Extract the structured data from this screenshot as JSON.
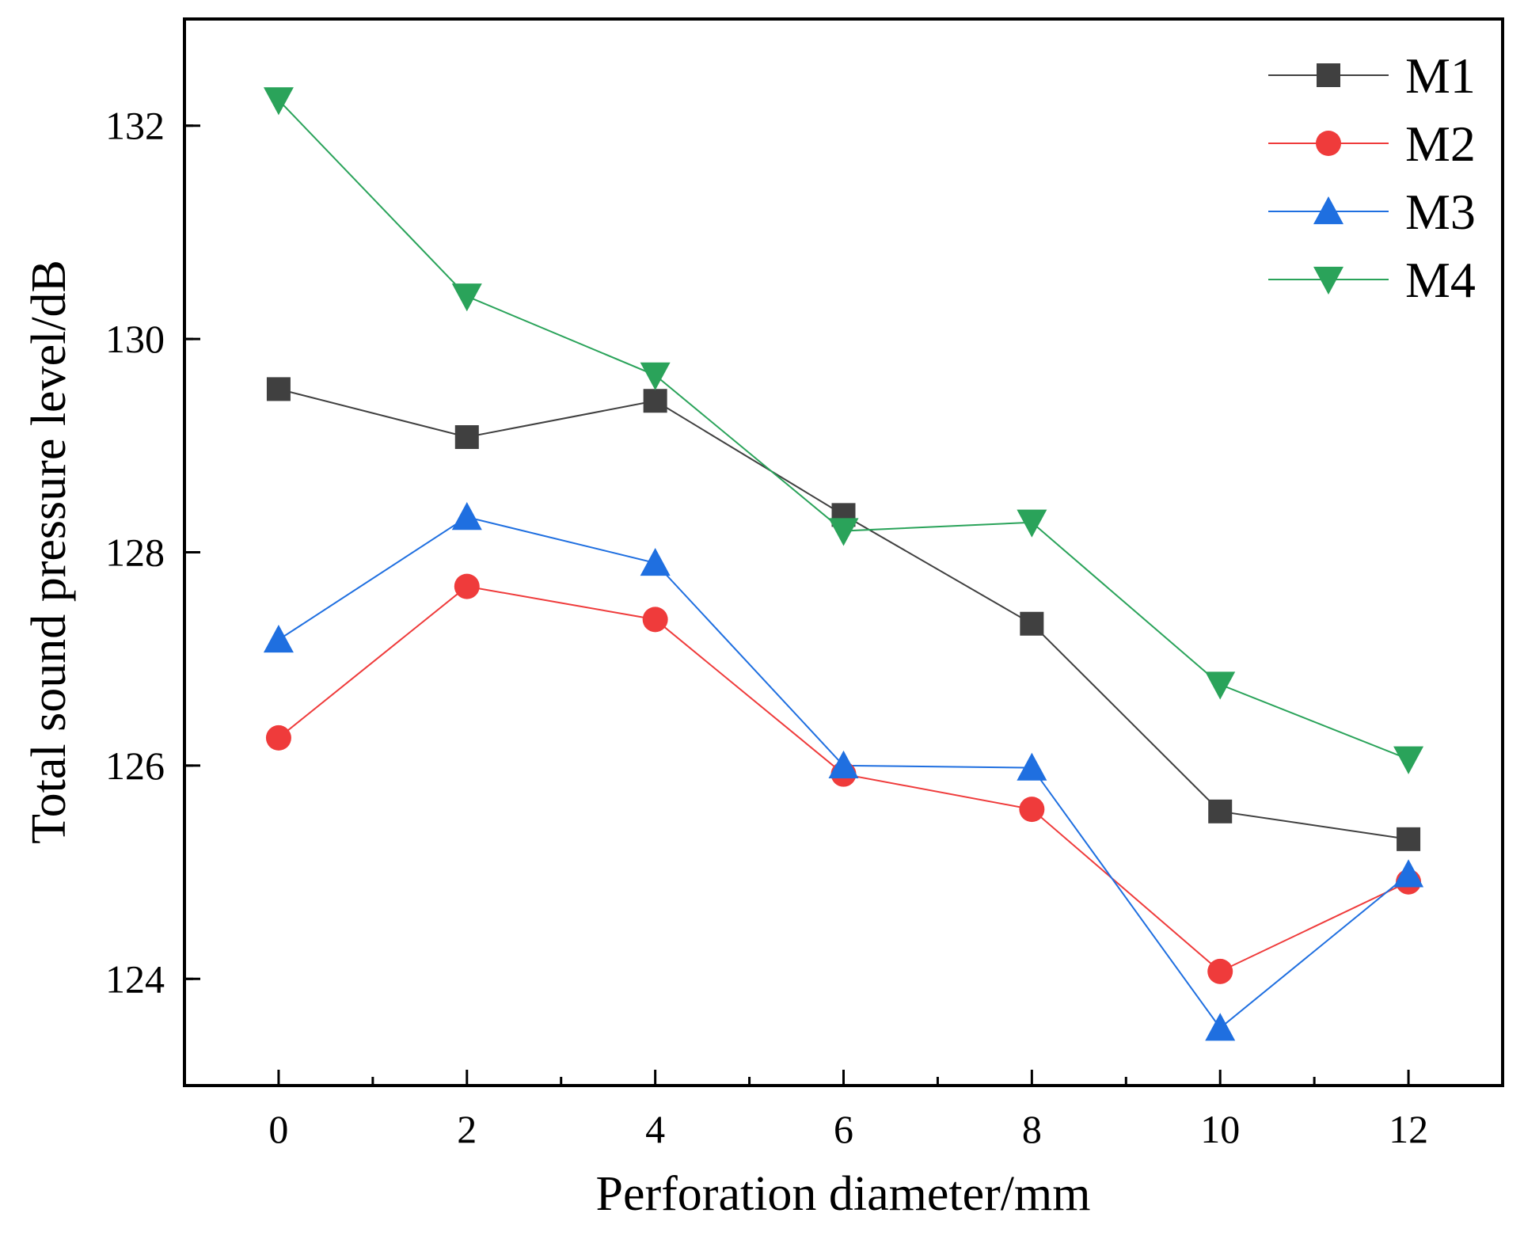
{
  "chart_data": {
    "type": "line",
    "xlabel": "Perforation diameter/mm",
    "ylabel": "Total sound pressure level/dB",
    "x": [
      0,
      2,
      4,
      6,
      8,
      10,
      12
    ],
    "xlim": [
      -1,
      13
    ],
    "ylim": [
      123,
      133
    ],
    "x_ticks": [
      0,
      2,
      4,
      6,
      8,
      10,
      12
    ],
    "x_tick_labels": [
      "0",
      "2",
      "4",
      "6",
      "8",
      "10",
      "12"
    ],
    "y_ticks": [
      124,
      126,
      128,
      130,
      132
    ],
    "y_tick_labels": [
      "124",
      "126",
      "128",
      "130",
      "132"
    ],
    "grid": false,
    "legend_position": "top-right",
    "series": [
      {
        "name": "M1",
        "marker": "square",
        "color": "#404040",
        "values": [
          129.53,
          129.08,
          129.42,
          128.35,
          127.33,
          125.57,
          125.31
        ]
      },
      {
        "name": "M2",
        "marker": "circle",
        "color": "#ef3b3b",
        "values": [
          126.26,
          127.68,
          127.37,
          125.92,
          125.59,
          124.07,
          124.91
        ]
      },
      {
        "name": "M3",
        "marker": "triangle-up",
        "color": "#1f6fe0",
        "values": [
          127.18,
          128.33,
          127.9,
          126.0,
          125.98,
          123.54,
          124.98
        ]
      },
      {
        "name": "M4",
        "marker": "triangle-down",
        "color": "#2aa35a",
        "values": [
          132.24,
          130.4,
          129.66,
          128.2,
          128.28,
          126.76,
          126.06
        ]
      }
    ]
  }
}
